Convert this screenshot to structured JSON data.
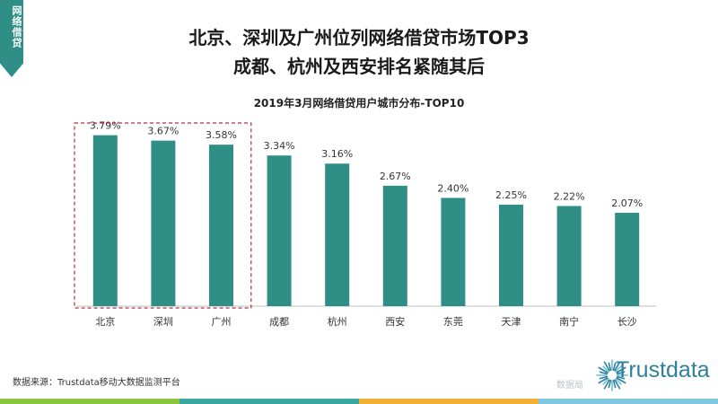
{
  "header": {
    "tag": "网络借贷",
    "title_line1": "北京、深圳及广州位列网络借贷市场TOP3",
    "title_line2": "成都、杭州及西安排名紧随其后"
  },
  "footer": {
    "source": "数据来源：Trustdata移动大数据监测平台",
    "watermark": "数据局",
    "logo_text": "Trustdata"
  },
  "colors": {
    "bar": "#2f8f86",
    "highlight_box": "#b03030",
    "stripe": [
      "#8cc63f",
      "#3aa7a0",
      "#f2b134",
      "#7fc8e0"
    ]
  },
  "chart_data": {
    "type": "bar",
    "title": "2019年3月网络借贷用户城市分布-TOP10",
    "categories": [
      "北京",
      "深圳",
      "广州",
      "成都",
      "杭州",
      "西安",
      "东莞",
      "天津",
      "南宁",
      "长沙"
    ],
    "values": [
      3.79,
      3.67,
      3.58,
      3.34,
      3.16,
      2.67,
      2.4,
      2.25,
      2.22,
      2.07
    ],
    "value_labels": [
      "3.79%",
      "3.67%",
      "3.58%",
      "3.34%",
      "3.16%",
      "2.67%",
      "2.40%",
      "2.25%",
      "2.22%",
      "2.07%"
    ],
    "ylim": [
      0,
      4.2
    ],
    "grid": false,
    "highlighted": [
      "北京",
      "深圳",
      "广州"
    ]
  }
}
